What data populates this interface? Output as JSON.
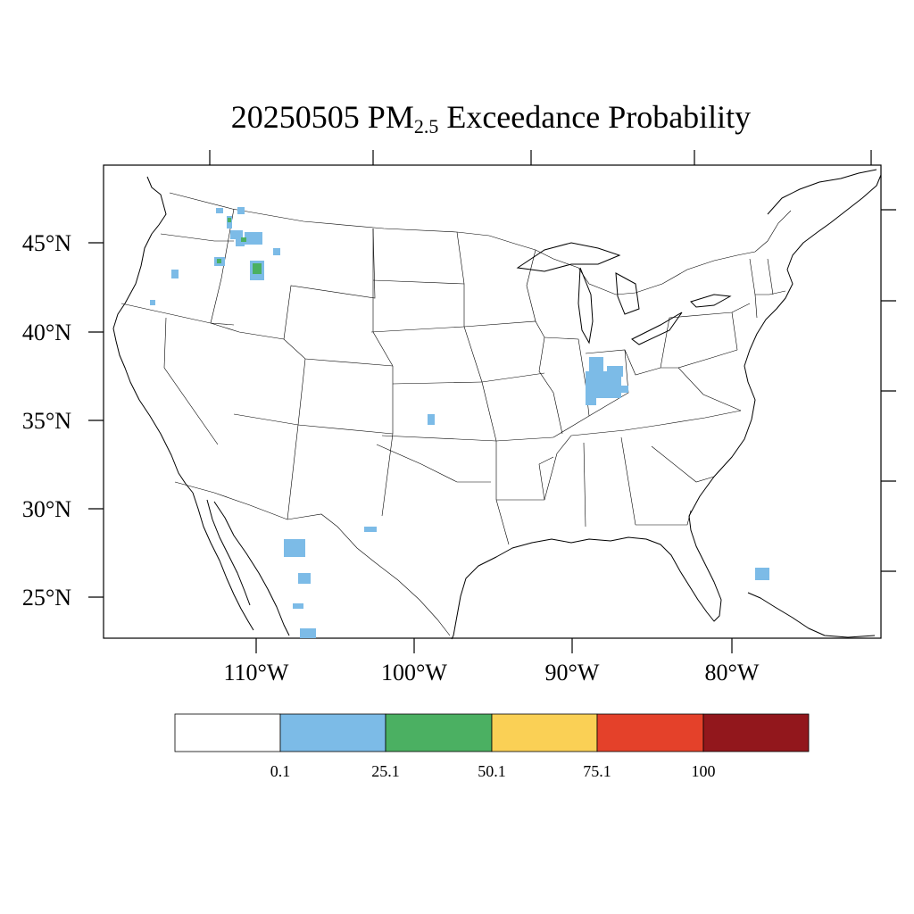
{
  "title": {
    "date": "20250505",
    "pm_main": "PM",
    "pm_sub": "2.5",
    "rest": "Exceedance Probability"
  },
  "map": {
    "lat_labels": [
      "45°N",
      "40°N",
      "35°N",
      "30°N",
      "25°N"
    ],
    "lon_labels": [
      "110°W",
      "100°W",
      "90°W",
      "80°W"
    ],
    "background": "#ffffff",
    "line_color": "#000000"
  },
  "legend": {
    "labels": [
      "0.1",
      "25.1",
      "50.1",
      "75.1",
      "100"
    ],
    "colors": [
      "#ffffff",
      "#7cbbe7",
      "#4bb062",
      "#fad055",
      "#e4412a",
      "#92171c"
    ]
  }
}
